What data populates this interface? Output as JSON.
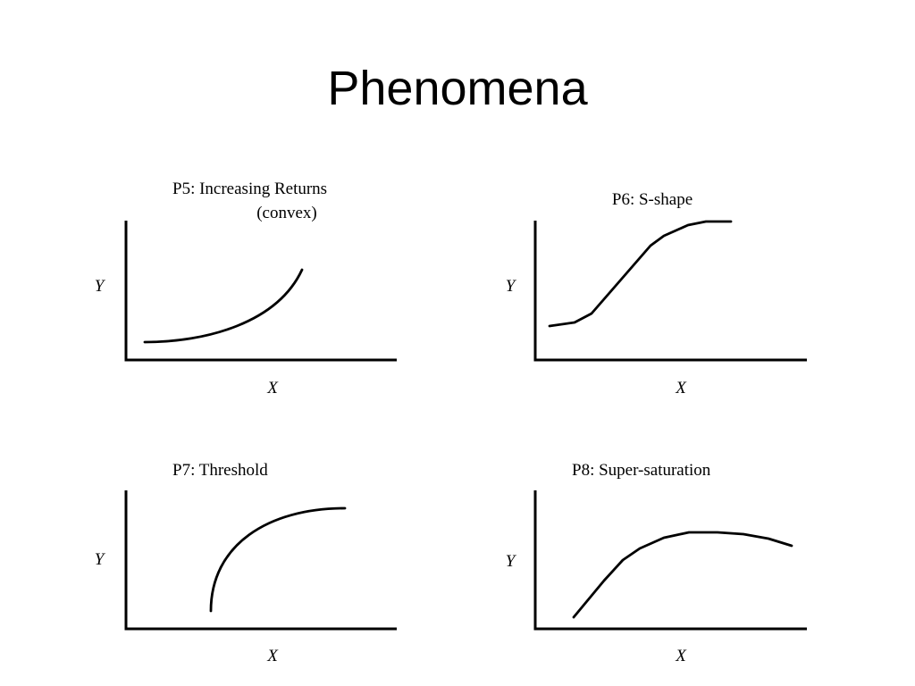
{
  "title": "Phenomena",
  "panels": [
    {
      "title_lines": [
        "P5:  Increasing Returns",
        "(convex)"
      ],
      "ylabel": "Y",
      "xlabel": "X"
    },
    {
      "title_lines": [
        "P6: S-shape"
      ],
      "ylabel": "Y",
      "xlabel": "X"
    },
    {
      "title_lines": [
        "P7: Threshold"
      ],
      "ylabel": "Y",
      "xlabel": "X"
    },
    {
      "title_lines": [
        "P8: Super-saturation"
      ],
      "ylabel": "Y",
      "xlabel": "X"
    }
  ]
}
